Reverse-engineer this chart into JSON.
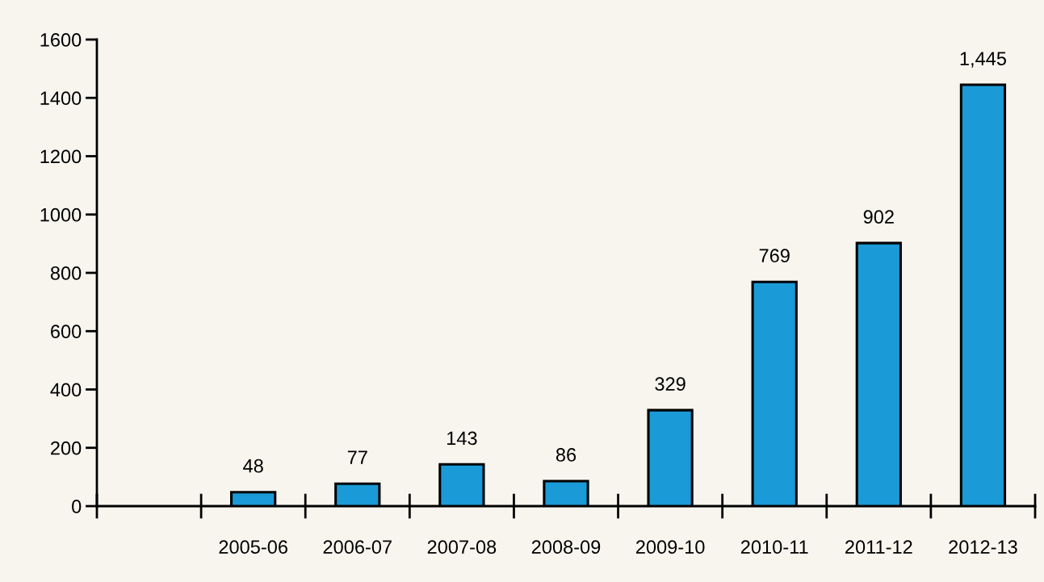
{
  "chart_data": {
    "type": "bar",
    "categories": [
      null,
      "2005-06",
      "2006-07",
      "2007-08",
      "2008-09",
      "2009-10",
      "2010-11",
      "2011-12",
      "2012-13"
    ],
    "values": [
      null,
      48,
      77,
      143,
      86,
      329,
      769,
      902,
      1445
    ],
    "value_labels": [
      null,
      "48",
      "77",
      "143",
      "86",
      "329",
      "769",
      "902",
      "1,445"
    ],
    "color": "#1a9ad6",
    "ylim": [
      0,
      1600
    ],
    "yticks": [
      0,
      200,
      400,
      600,
      800,
      1000,
      1200,
      1400,
      1600
    ],
    "grid": false,
    "legend": false
  }
}
